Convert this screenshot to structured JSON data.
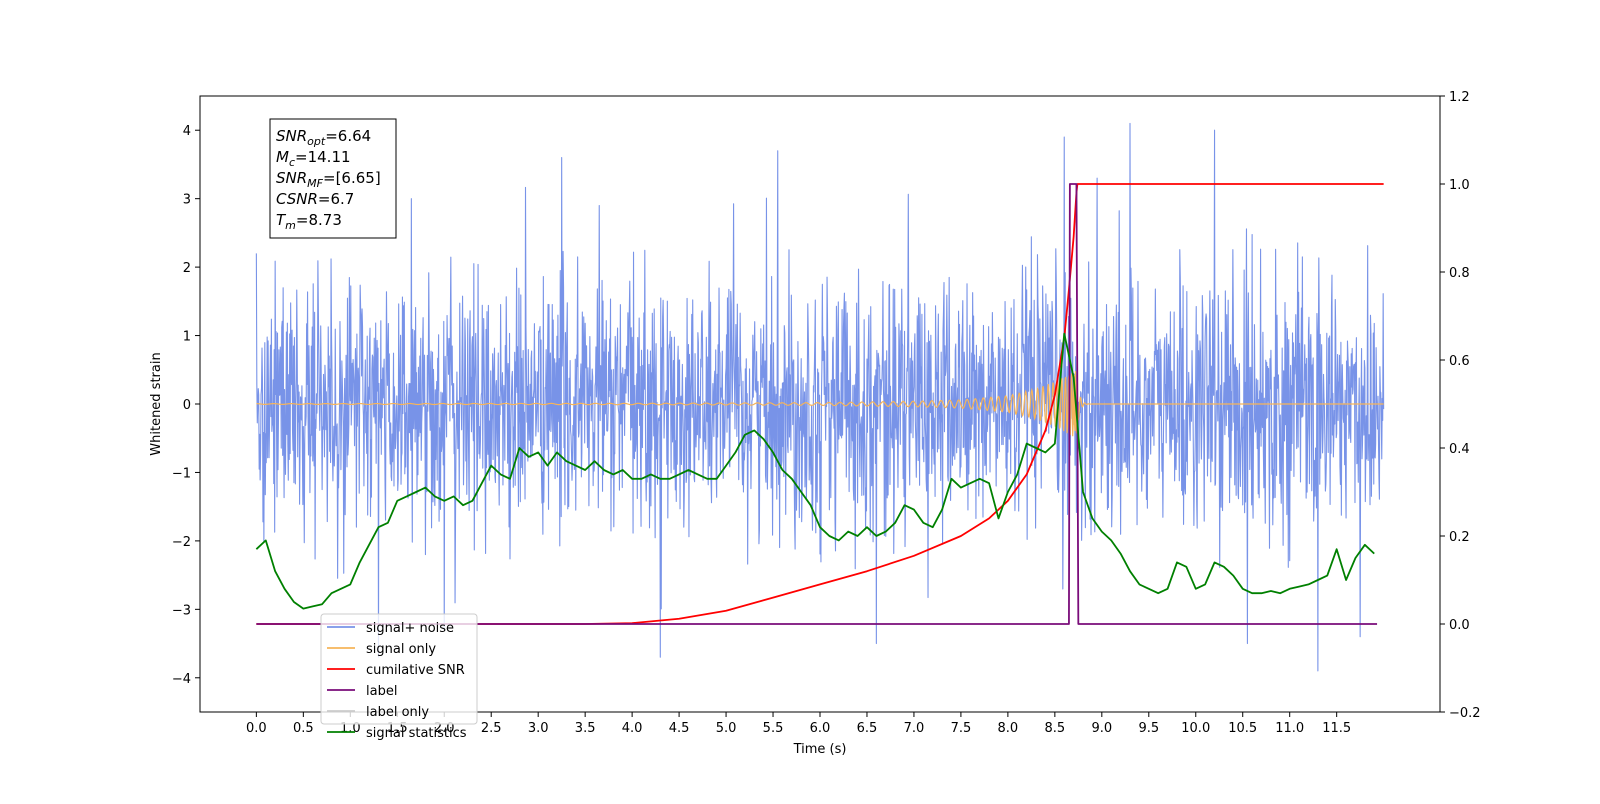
{
  "chart_data": {
    "type": "line",
    "xlabel": "Time (s)",
    "ylabel": "Whitened strain",
    "xlim": [
      -0.6,
      12.6
    ],
    "ylim": [
      -4.5,
      4.5
    ],
    "y2lim": [
      -0.2,
      1.2
    ],
    "x_ticks": [
      0.0,
      0.5,
      1.0,
      1.5,
      2.0,
      2.5,
      3.0,
      3.5,
      4.0,
      4.5,
      5.0,
      5.5,
      6.0,
      6.5,
      7.0,
      7.5,
      8.0,
      8.5,
      9.0,
      9.5,
      10.0,
      10.5,
      11.0,
      11.5
    ],
    "x_tick_labels": [
      "0.0",
      "0.5",
      "1.0",
      "1.5",
      "2.0",
      "2.5",
      "3.0",
      "3.5",
      "4.0",
      "4.5",
      "5.0",
      "5.5",
      "6.0",
      "6.5",
      "7.0",
      "7.5",
      "8.0",
      "8.5",
      "9.0",
      "9.5",
      "10.0",
      "10.5",
      "11.0",
      "11.5"
    ],
    "y_ticks": [
      -4,
      -3,
      -2,
      -1,
      0,
      1,
      2,
      3,
      4
    ],
    "y_tick_labels": [
      "−4",
      "−3",
      "−2",
      "−1",
      "0",
      "1",
      "2",
      "3",
      "4"
    ],
    "y2_ticks": [
      -0.2,
      0.0,
      0.2,
      0.4,
      0.6,
      0.8,
      1.0,
      1.2
    ],
    "y2_tick_labels": [
      "−0.2",
      "0.0",
      "0.2",
      "0.4",
      "0.6",
      "0.8",
      "1.0",
      "1.2"
    ],
    "grid": false,
    "legend_position": "lower-left",
    "info_box": {
      "lines": [
        {
          "base": "SNR",
          "sub": "opt",
          "value": "=6.64"
        },
        {
          "base": "M",
          "sub": "c",
          "value": "=14.11"
        },
        {
          "base": "SNR",
          "sub": "MF",
          "value": "=[6.65]"
        },
        {
          "base": "CSNR",
          "sub": "",
          "value": "=6.7"
        },
        {
          "base": "T",
          "sub": "m",
          "value": "=8.73"
        }
      ]
    },
    "series": [
      {
        "name": "signal+ noise",
        "color": "#7893e8",
        "axis": "left",
        "duration": 12.0,
        "envelope_typical": 2.2,
        "envelope_max": 4.1,
        "peak_x": [
          0.0,
          1.3,
          1.65,
          2.0,
          3.25,
          3.65,
          4.3,
          5.55,
          6.6,
          8.6,
          8.95,
          9.3,
          10.2,
          10.55,
          11.3,
          11.75
        ],
        "peak_y": [
          2.2,
          -3.7,
          3.0,
          -3.3,
          3.6,
          2.9,
          -3.7,
          3.7,
          -3.5,
          3.9,
          3.3,
          4.1,
          4.0,
          -3.5,
          -3.9,
          -3.4
        ]
      },
      {
        "name": "signal only",
        "color": "#f6b45a",
        "axis": "left",
        "chirp_start": 0.0,
        "merger_time": 8.73,
        "end_time": 12.0,
        "amplitude_x": [
          0.0,
          4.0,
          6.0,
          7.0,
          7.5,
          8.0,
          8.3,
          8.5,
          8.65,
          8.73
        ],
        "amplitude_y": [
          0.005,
          0.01,
          0.02,
          0.04,
          0.06,
          0.12,
          0.22,
          0.33,
          0.45,
          0.55
        ]
      },
      {
        "name": "cumilative SNR",
        "color": "#ff0000",
        "axis": "right",
        "x": [
          0.0,
          3.5,
          4.0,
          4.5,
          5.0,
          5.5,
          6.0,
          6.5,
          7.0,
          7.5,
          7.8,
          8.0,
          8.2,
          8.4,
          8.5,
          8.6,
          8.65,
          8.7,
          8.73,
          8.74,
          12.0
        ],
        "y": [
          0.0,
          0.0,
          0.002,
          0.012,
          0.03,
          0.06,
          0.09,
          0.12,
          0.155,
          0.2,
          0.24,
          0.28,
          0.34,
          0.44,
          0.52,
          0.65,
          0.76,
          0.88,
          0.98,
          1.0,
          1.0
        ]
      },
      {
        "name": "label",
        "color": "#7a0c7a",
        "axis": "right",
        "x": [
          0.0,
          8.65,
          8.66,
          8.73,
          8.75,
          11.93
        ],
        "y": [
          0.0,
          0.0,
          1.0,
          1.0,
          0.0,
          0.0
        ]
      },
      {
        "name": "label only",
        "color": "#cccccc",
        "axis": "right",
        "legend_only": true
      },
      {
        "name": "signal statistics",
        "color": "#008000",
        "axis": "right",
        "x": [
          0.0,
          0.1,
          0.2,
          0.3,
          0.4,
          0.5,
          0.6,
          0.7,
          0.8,
          0.9,
          1.0,
          1.1,
          1.2,
          1.3,
          1.4,
          1.5,
          1.6,
          1.7,
          1.8,
          1.9,
          2.0,
          2.1,
          2.2,
          2.3,
          2.4,
          2.5,
          2.6,
          2.7,
          2.8,
          2.9,
          3.0,
          3.1,
          3.2,
          3.3,
          3.4,
          3.5,
          3.6,
          3.7,
          3.8,
          3.9,
          4.0,
          4.1,
          4.2,
          4.3,
          4.4,
          4.5,
          4.6,
          4.7,
          4.8,
          4.9,
          5.0,
          5.1,
          5.2,
          5.3,
          5.4,
          5.5,
          5.6,
          5.7,
          5.8,
          5.9,
          6.0,
          6.1,
          6.2,
          6.3,
          6.4,
          6.5,
          6.6,
          6.7,
          6.8,
          6.9,
          7.0,
          7.1,
          7.2,
          7.3,
          7.4,
          7.5,
          7.6,
          7.7,
          7.8,
          7.9,
          8.0,
          8.1,
          8.2,
          8.3,
          8.4,
          8.5,
          8.6,
          8.7,
          8.8,
          8.9,
          9.0,
          9.1,
          9.2,
          9.3,
          9.4,
          9.5,
          9.6,
          9.7,
          9.8,
          9.9,
          10.0,
          10.1,
          10.2,
          10.3,
          10.4,
          10.5,
          10.6,
          10.7,
          10.8,
          10.9,
          11.0,
          11.1,
          11.2,
          11.3,
          11.4,
          11.5,
          11.6,
          11.7,
          11.8,
          11.9
        ],
        "y": [
          0.17,
          0.19,
          0.12,
          0.08,
          0.05,
          0.035,
          0.04,
          0.045,
          0.07,
          0.08,
          0.09,
          0.14,
          0.18,
          0.22,
          0.23,
          0.28,
          0.29,
          0.3,
          0.31,
          0.29,
          0.28,
          0.29,
          0.27,
          0.28,
          0.32,
          0.36,
          0.34,
          0.33,
          0.4,
          0.38,
          0.39,
          0.36,
          0.39,
          0.37,
          0.36,
          0.35,
          0.37,
          0.35,
          0.34,
          0.35,
          0.33,
          0.33,
          0.34,
          0.33,
          0.33,
          0.34,
          0.35,
          0.34,
          0.33,
          0.33,
          0.36,
          0.39,
          0.43,
          0.44,
          0.42,
          0.39,
          0.35,
          0.33,
          0.3,
          0.27,
          0.22,
          0.2,
          0.19,
          0.21,
          0.2,
          0.22,
          0.2,
          0.21,
          0.23,
          0.27,
          0.26,
          0.23,
          0.22,
          0.26,
          0.33,
          0.31,
          0.32,
          0.33,
          0.32,
          0.24,
          0.3,
          0.34,
          0.41,
          0.4,
          0.39,
          0.41,
          0.66,
          0.56,
          0.3,
          0.24,
          0.21,
          0.19,
          0.16,
          0.12,
          0.09,
          0.08,
          0.07,
          0.08,
          0.14,
          0.13,
          0.08,
          0.09,
          0.14,
          0.13,
          0.11,
          0.08,
          0.07,
          0.07,
          0.075,
          0.07,
          0.08,
          0.085,
          0.09,
          0.1,
          0.11,
          0.17,
          0.1,
          0.15,
          0.18,
          0.16
        ]
      }
    ]
  }
}
